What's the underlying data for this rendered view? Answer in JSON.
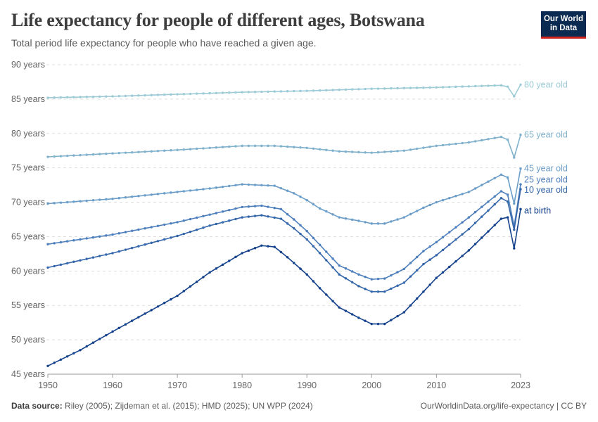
{
  "header": {
    "title": "Life expectancy for people of different ages, Botswana",
    "subtitle": "Total period life expectancy for people who have reached a given age.",
    "logo_line1": "Our World",
    "logo_line2": "in Data"
  },
  "footer": {
    "source_label": "Data source:",
    "source_text": "Riley (2005); Zijdeman et al. (2015); HMD (2025); UN WPP (2024)",
    "url_license": "OurWorldinData.org/life-expectancy | CC BY"
  },
  "colors": {
    "age80": "#9ccbd7",
    "age65": "#7fb1cc",
    "age45": "#6b9dc9",
    "age25": "#4e7fbd",
    "age10": "#3466aa",
    "birth": "#14418b",
    "grid": "#dddddd",
    "axis": "#999999"
  },
  "chart_data": {
    "type": "line",
    "title": "Life expectancy for people of different ages, Botswana",
    "ylabel": "",
    "xlabel": "",
    "xlim": [
      1950,
      2023
    ],
    "ylim": [
      45,
      90
    ],
    "x_ticks": [
      "1950",
      "1960",
      "1970",
      "1980",
      "1990",
      "2000",
      "2010",
      "2023"
    ],
    "y_ticks": [
      "45 years",
      "50 years",
      "55 years",
      "60 years",
      "65 years",
      "70 years",
      "75 years",
      "80 years",
      "85 years",
      "90 years"
    ],
    "grid": "horizontal dashed",
    "legend": "labels at right end of lines",
    "series": [
      {
        "name": "80 year old",
        "color_key": "age80",
        "points": [
          [
            1950,
            85.2
          ],
          [
            1960,
            85.4
          ],
          [
            1970,
            85.7
          ],
          [
            1980,
            86.0
          ],
          [
            1990,
            86.2
          ],
          [
            2000,
            86.5
          ],
          [
            2010,
            86.7
          ],
          [
            2020,
            87.0
          ],
          [
            2021,
            86.8
          ],
          [
            2022,
            85.4
          ],
          [
            2023,
            87.1
          ]
        ]
      },
      {
        "name": "65 year old",
        "color_key": "age65",
        "points": [
          [
            1950,
            76.6
          ],
          [
            1960,
            77.1
          ],
          [
            1970,
            77.6
          ],
          [
            1980,
            78.2
          ],
          [
            1985,
            78.2
          ],
          [
            1990,
            77.9
          ],
          [
            1995,
            77.4
          ],
          [
            2000,
            77.2
          ],
          [
            2005,
            77.5
          ],
          [
            2010,
            78.2
          ],
          [
            2015,
            78.7
          ],
          [
            2020,
            79.5
          ],
          [
            2021,
            79.1
          ],
          [
            2022,
            76.5
          ],
          [
            2023,
            79.8
          ]
        ]
      },
      {
        "name": "45 year old",
        "color_key": "age45",
        "points": [
          [
            1950,
            69.8
          ],
          [
            1960,
            70.5
          ],
          [
            1970,
            71.5
          ],
          [
            1975,
            72.0
          ],
          [
            1980,
            72.6
          ],
          [
            1985,
            72.4
          ],
          [
            1988,
            71.3
          ],
          [
            1990,
            70.3
          ],
          [
            1992,
            69.1
          ],
          [
            1995,
            67.8
          ],
          [
            1998,
            67.3
          ],
          [
            2000,
            66.9
          ],
          [
            2002,
            66.9
          ],
          [
            2005,
            67.8
          ],
          [
            2008,
            69.2
          ],
          [
            2010,
            70.0
          ],
          [
            2015,
            71.5
          ],
          [
            2020,
            74.0
          ],
          [
            2021,
            73.6
          ],
          [
            2022,
            69.8
          ],
          [
            2023,
            74.9
          ]
        ]
      },
      {
        "name": "25 year old",
        "color_key": "age25",
        "points": [
          [
            1950,
            63.9
          ],
          [
            1960,
            65.3
          ],
          [
            1970,
            67.1
          ],
          [
            1975,
            68.2
          ],
          [
            1980,
            69.3
          ],
          [
            1983,
            69.5
          ],
          [
            1986,
            69.0
          ],
          [
            1988,
            67.5
          ],
          [
            1990,
            65.8
          ],
          [
            1992,
            63.8
          ],
          [
            1995,
            60.8
          ],
          [
            1998,
            59.5
          ],
          [
            2000,
            58.8
          ],
          [
            2002,
            58.9
          ],
          [
            2005,
            60.3
          ],
          [
            2008,
            62.9
          ],
          [
            2010,
            64.2
          ],
          [
            2015,
            67.8
          ],
          [
            2020,
            71.6
          ],
          [
            2021,
            71.1
          ],
          [
            2022,
            66.5
          ],
          [
            2023,
            72.6
          ]
        ]
      },
      {
        "name": "10 year old",
        "color_key": "age10",
        "points": [
          [
            1950,
            60.5
          ],
          [
            1960,
            62.6
          ],
          [
            1970,
            65.1
          ],
          [
            1975,
            66.6
          ],
          [
            1980,
            67.8
          ],
          [
            1983,
            68.1
          ],
          [
            1986,
            67.6
          ],
          [
            1988,
            66.2
          ],
          [
            1990,
            64.6
          ],
          [
            1992,
            62.6
          ],
          [
            1995,
            59.5
          ],
          [
            1998,
            57.8
          ],
          [
            2000,
            57.0
          ],
          [
            2002,
            57.0
          ],
          [
            2005,
            58.3
          ],
          [
            2008,
            61.0
          ],
          [
            2010,
            62.3
          ],
          [
            2015,
            66.1
          ],
          [
            2020,
            70.6
          ],
          [
            2021,
            70.1
          ],
          [
            2022,
            66.0
          ],
          [
            2023,
            71.9
          ]
        ]
      },
      {
        "name": "at birth",
        "color_key": "birth",
        "points": [
          [
            1950,
            46.2
          ],
          [
            1955,
            48.5
          ],
          [
            1960,
            51.2
          ],
          [
            1965,
            53.8
          ],
          [
            1970,
            56.4
          ],
          [
            1975,
            59.8
          ],
          [
            1980,
            62.6
          ],
          [
            1983,
            63.7
          ],
          [
            1985,
            63.5
          ],
          [
            1987,
            62.0
          ],
          [
            1990,
            59.5
          ],
          [
            1992,
            57.5
          ],
          [
            1995,
            54.7
          ],
          [
            1998,
            53.2
          ],
          [
            2000,
            52.3
          ],
          [
            2002,
            52.3
          ],
          [
            2005,
            54.0
          ],
          [
            2007,
            56.0
          ],
          [
            2010,
            59.0
          ],
          [
            2015,
            63.0
          ],
          [
            2020,
            67.6
          ],
          [
            2021,
            67.8
          ],
          [
            2022,
            63.3
          ],
          [
            2023,
            69.0
          ]
        ]
      }
    ]
  }
}
